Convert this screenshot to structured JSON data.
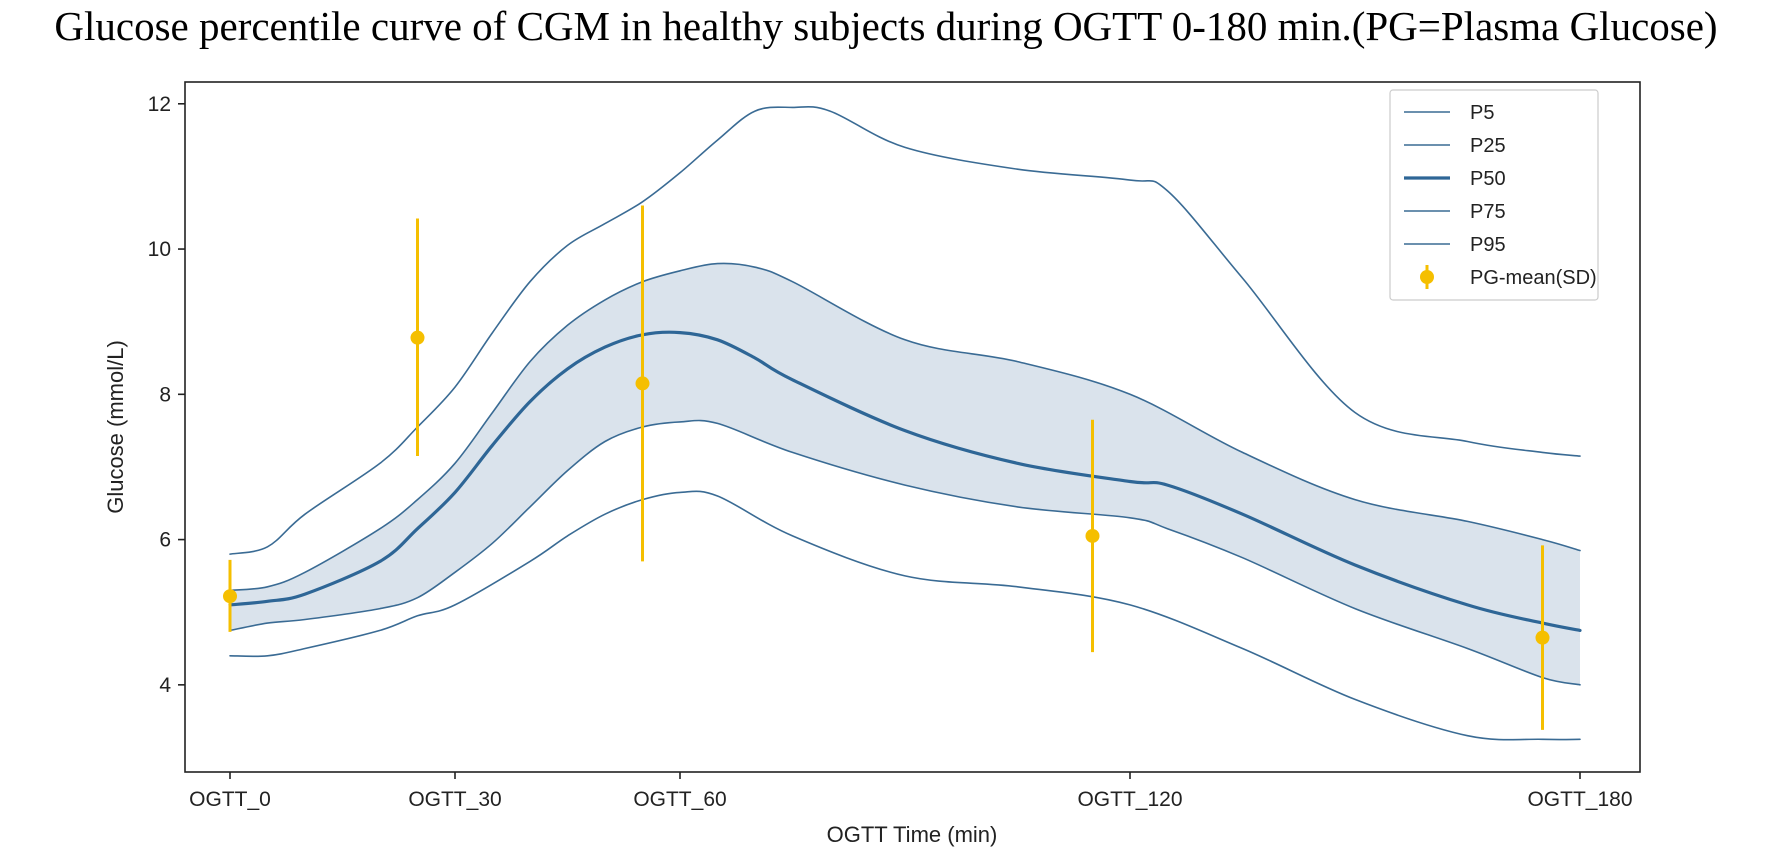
{
  "chart_data": {
    "type": "line",
    "title": "Glucose percentile curve of CGM in healthy subjects during OGTT 0-180 min.(PG=Plasma Glucose)",
    "xlabel": "OGTT Time (min)",
    "ylabel": "Glucose (mmol/L)",
    "xlim": [
      -6,
      188
    ],
    "ylim": [
      2.8,
      12.3
    ],
    "grid": false,
    "legend_position": "top-right",
    "x_ticks": [
      {
        "value": 0,
        "label": "OGTT_0"
      },
      {
        "value": 30,
        "label": "OGTT_30"
      },
      {
        "value": 60,
        "label": "OGTT_60"
      },
      {
        "value": 120,
        "label": "OGTT_120"
      },
      {
        "value": 180,
        "label": "OGTT_180"
      }
    ],
    "y_ticks": [
      4,
      6,
      8,
      10,
      12
    ],
    "shaded_band": {
      "lower": "P25",
      "upper": "P75",
      "color": "#dae3ec"
    },
    "series": [
      {
        "name": "P5",
        "color": "#3a6b94",
        "width": 1.6,
        "x": [
          0,
          5,
          10,
          20,
          25,
          30,
          40,
          45,
          50,
          55,
          60,
          65,
          75,
          90,
          105,
          120,
          135,
          150,
          165,
          175,
          180
        ],
        "y": [
          4.4,
          4.4,
          4.5,
          4.75,
          4.95,
          5.1,
          5.7,
          6.05,
          6.35,
          6.55,
          6.65,
          6.6,
          6.05,
          5.5,
          5.35,
          5.1,
          4.5,
          3.8,
          3.3,
          3.25,
          3.25
        ]
      },
      {
        "name": "P25",
        "color": "#3a6b94",
        "width": 1.6,
        "x": [
          0,
          5,
          10,
          20,
          25,
          30,
          35,
          40,
          45,
          50,
          55,
          60,
          65,
          75,
          90,
          105,
          120,
          125,
          135,
          150,
          165,
          175,
          180
        ],
        "y": [
          4.75,
          4.85,
          4.9,
          5.05,
          5.2,
          5.55,
          5.95,
          6.45,
          6.95,
          7.35,
          7.55,
          7.62,
          7.6,
          7.2,
          6.75,
          6.45,
          6.3,
          6.15,
          5.75,
          5.05,
          4.5,
          4.1,
          4.0
        ]
      },
      {
        "name": "P50",
        "color": "#2e6696",
        "width": 3.2,
        "x": [
          0,
          5,
          10,
          20,
          25,
          30,
          35,
          40,
          45,
          50,
          55,
          60,
          65,
          70,
          75,
          90,
          105,
          120,
          125,
          135,
          150,
          165,
          175,
          180
        ],
        "y": [
          5.1,
          5.15,
          5.25,
          5.7,
          6.15,
          6.65,
          7.3,
          7.9,
          8.35,
          8.65,
          8.82,
          8.85,
          8.75,
          8.5,
          8.2,
          7.5,
          7.05,
          6.8,
          6.75,
          6.35,
          5.65,
          5.1,
          4.85,
          4.75
        ]
      },
      {
        "name": "P75",
        "color": "#3a6b94",
        "width": 1.6,
        "x": [
          0,
          5,
          10,
          20,
          25,
          30,
          35,
          40,
          45,
          50,
          55,
          60,
          65,
          70,
          75,
          90,
          105,
          120,
          135,
          150,
          165,
          175,
          180
        ],
        "y": [
          5.3,
          5.35,
          5.55,
          6.15,
          6.55,
          7.05,
          7.75,
          8.45,
          8.95,
          9.3,
          9.55,
          9.7,
          9.8,
          9.75,
          9.55,
          8.75,
          8.45,
          8.0,
          7.2,
          6.55,
          6.25,
          6.0,
          5.85
        ]
      },
      {
        "name": "P95",
        "color": "#3a6b94",
        "width": 1.6,
        "x": [
          0,
          5,
          10,
          20,
          25,
          30,
          35,
          40,
          45,
          50,
          55,
          60,
          65,
          70,
          75,
          80,
          90,
          105,
          120,
          125,
          135,
          150,
          165,
          175,
          180
        ],
        "y": [
          5.8,
          5.9,
          6.35,
          7.05,
          7.55,
          8.1,
          8.85,
          9.55,
          10.05,
          10.35,
          10.65,
          11.05,
          11.5,
          11.9,
          11.95,
          11.9,
          11.4,
          11.1,
          10.95,
          10.8,
          9.6,
          7.75,
          7.35,
          7.2,
          7.15
        ]
      }
    ],
    "pg_mean_sd": {
      "name": "PG-mean(SD)",
      "color": "#f5bf00",
      "points": [
        {
          "x": 0,
          "mean": 5.22,
          "low": 4.73,
          "high": 5.72
        },
        {
          "x": 25,
          "mean": 8.78,
          "low": 7.15,
          "high": 10.42
        },
        {
          "x": 55,
          "mean": 8.15,
          "low": 5.7,
          "high": 10.6
        },
        {
          "x": 115,
          "mean": 6.05,
          "low": 4.45,
          "high": 7.65
        },
        {
          "x": 175,
          "mean": 4.65,
          "low": 3.38,
          "high": 5.92
        }
      ]
    }
  }
}
